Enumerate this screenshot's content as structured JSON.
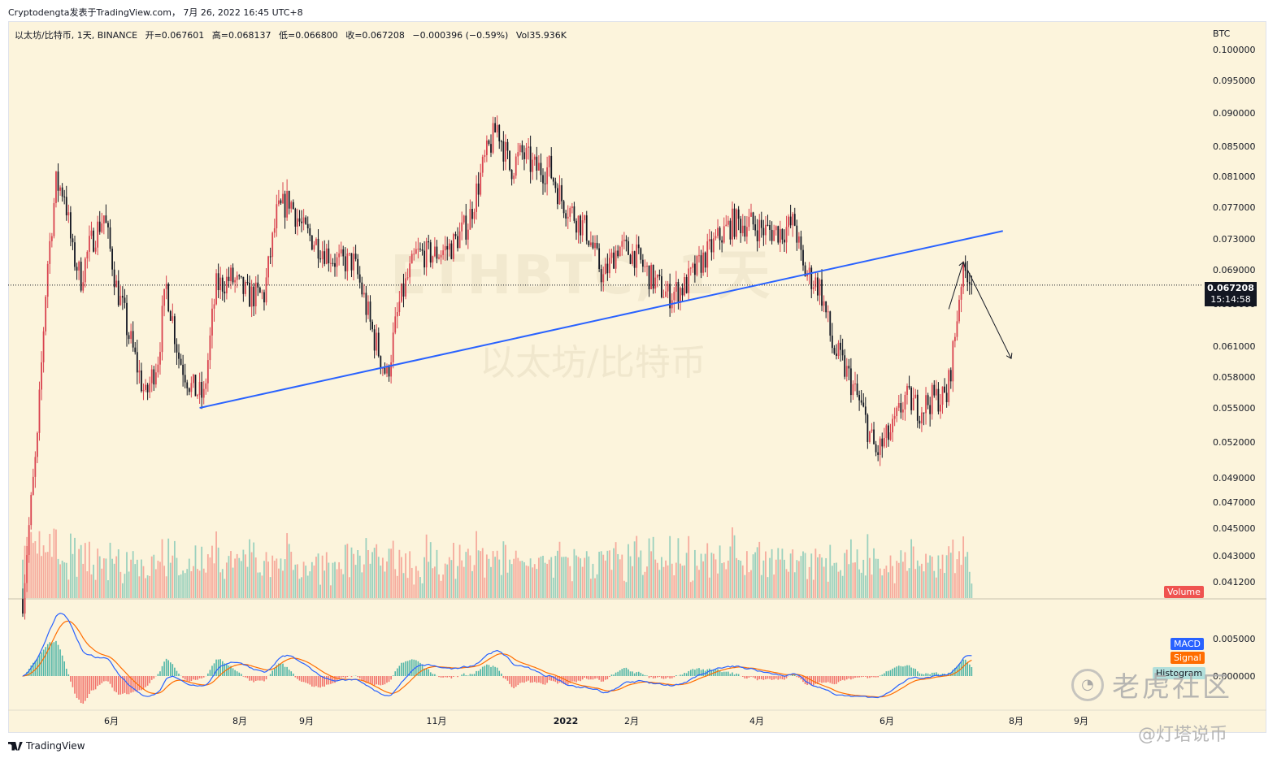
{
  "header": {
    "publisher": "Cryptodengta发表于TradingView.com，  7月 26, 2022 16:45 UTC+8"
  },
  "legend": {
    "symbol": "以太坊/比特币, 1天, BINANCE",
    "open": "开=0.067601",
    "high": "高=0.068137",
    "low": "低=0.066800",
    "close": "收=0.067208",
    "change": "−0.000396 (−0.59%)",
    "volume": "Vol35.936K"
  },
  "currency": "BTC",
  "watermark": {
    "symbol": "ETHBTC, 1天",
    "description": "以太坊/比特币"
  },
  "last_price": {
    "value": "0.067208",
    "countdown": "15:14:58"
  },
  "indicators": {
    "volume_label": "Volume",
    "macd_label": "MACD",
    "signal_label": "Signal",
    "histogram_label": "Histogram"
  },
  "colors": {
    "up": "#d9434f",
    "down": "#131722",
    "trendline": "#2962ff",
    "macd": "#2962ff",
    "signal": "#ff6d00",
    "hist_pos": "#26a69a",
    "hist_neg": "#ef5350",
    "volume_label_bg": "#ef5350",
    "background": "#fcf4dc"
  },
  "branding": {
    "tradingview": "TradingView",
    "community": "老虎社区",
    "author": "@灯塔说币"
  },
  "chart_data": {
    "type": "candlestick",
    "symbol": "以太坊/比特币",
    "interval": "1天",
    "y_ticks": [
      "0.100000",
      "0.095000",
      "0.090000",
      "0.085000",
      "0.081000",
      "0.077000",
      "0.073000",
      "0.069000",
      "0.065000",
      "0.061000",
      "0.058000",
      "0.055000",
      "0.052000",
      "0.049000",
      "0.047000",
      "0.045000",
      "0.043000",
      "0.041200"
    ],
    "macd_ticks": [
      "0.005000",
      "0.000000"
    ],
    "x_ticks": [
      "6月",
      "8月",
      "9月",
      "11月",
      "2022",
      "2月",
      "4月",
      "6月",
      "8月",
      "9月"
    ],
    "price_path": [
      [
        "2021-04-26",
        0.04
      ],
      [
        "2021-05-03",
        0.052
      ],
      [
        "2021-05-08",
        0.07
      ],
      [
        "2021-05-12",
        0.08
      ],
      [
        "2021-05-16",
        0.079
      ],
      [
        "2021-05-20",
        0.071
      ],
      [
        "2021-05-24",
        0.068
      ],
      [
        "2021-05-28",
        0.072
      ],
      [
        "2021-06-04",
        0.076
      ],
      [
        "2021-06-10",
        0.067
      ],
      [
        "2021-06-16",
        0.062
      ],
      [
        "2021-06-24",
        0.056
      ],
      [
        "2021-06-30",
        0.06
      ],
      [
        "2021-07-04",
        0.067
      ],
      [
        "2021-07-10",
        0.06
      ],
      [
        "2021-07-16",
        0.057
      ],
      [
        "2021-07-22",
        0.056
      ],
      [
        "2021-07-28",
        0.067
      ],
      [
        "2021-08-04",
        0.068
      ],
      [
        "2021-08-12",
        0.066
      ],
      [
        "2021-08-20",
        0.066
      ],
      [
        "2021-08-26",
        0.076
      ],
      [
        "2021-09-01",
        0.078
      ],
      [
        "2021-09-08",
        0.074
      ],
      [
        "2021-09-16",
        0.072
      ],
      [
        "2021-09-24",
        0.07
      ],
      [
        "2021-10-02",
        0.07
      ],
      [
        "2021-10-10",
        0.063
      ],
      [
        "2021-10-18",
        0.058
      ],
      [
        "2021-10-24",
        0.065
      ],
      [
        "2021-11-01",
        0.071
      ],
      [
        "2021-11-10",
        0.071
      ],
      [
        "2021-11-18",
        0.072
      ],
      [
        "2021-11-26",
        0.075
      ],
      [
        "2021-12-04",
        0.083
      ],
      [
        "2021-12-10",
        0.088
      ],
      [
        "2021-12-16",
        0.082
      ],
      [
        "2021-12-22",
        0.084
      ],
      [
        "2021-12-28",
        0.082
      ],
      [
        "2022-01-04",
        0.082
      ],
      [
        "2022-01-10",
        0.078
      ],
      [
        "2022-01-16",
        0.076
      ],
      [
        "2022-01-22",
        0.074
      ],
      [
        "2022-01-30",
        0.068
      ],
      [
        "2022-02-06",
        0.072
      ],
      [
        "2022-02-14",
        0.071
      ],
      [
        "2022-02-22",
        0.068
      ],
      [
        "2022-03-02",
        0.066
      ],
      [
        "2022-03-10",
        0.067
      ],
      [
        "2022-03-18",
        0.07
      ],
      [
        "2022-03-26",
        0.073
      ],
      [
        "2022-04-02",
        0.075
      ],
      [
        "2022-04-10",
        0.075
      ],
      [
        "2022-04-18",
        0.074
      ],
      [
        "2022-04-26",
        0.074
      ],
      [
        "2022-05-02",
        0.075
      ],
      [
        "2022-05-06",
        0.069
      ],
      [
        "2022-05-14",
        0.067
      ],
      [
        "2022-05-20",
        0.061
      ],
      [
        "2022-05-28",
        0.058
      ],
      [
        "2022-06-03",
        0.055
      ],
      [
        "2022-06-10",
        0.051
      ],
      [
        "2022-06-18",
        0.053
      ],
      [
        "2022-06-24",
        0.056
      ],
      [
        "2022-07-01",
        0.055
      ],
      [
        "2022-07-08",
        0.056
      ],
      [
        "2022-07-14",
        0.056
      ],
      [
        "2022-07-18",
        0.062
      ],
      [
        "2022-07-21",
        0.068
      ],
      [
        "2022-07-24",
        0.069
      ],
      [
        "2022-07-26",
        0.067208
      ]
    ],
    "trendline": [
      [
        "2021-07-20",
        0.055
      ],
      [
        "2022-08-10",
        0.074
      ]
    ],
    "last_price": 0.067208,
    "projection_arrows": [
      [
        [
          "2022-07-15",
          0.0645
        ],
        [
          "2022-07-22",
          0.07
        ]
      ],
      [
        [
          "2022-07-24",
          0.069
        ],
        [
          "2022-08-14",
          0.0598
        ]
      ]
    ]
  }
}
